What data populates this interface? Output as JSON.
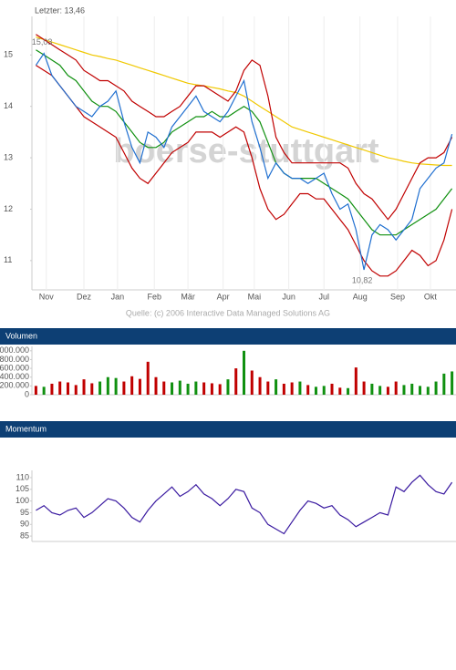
{
  "chart_data": [
    {
      "type": "line",
      "title": "Letzter: 13,46",
      "watermark": "boerse-stuttgart",
      "source": "Quelle: (c) 2006 Interactive Data Managed Solutions AG",
      "x": [
        0,
        1,
        2,
        3,
        4,
        5,
        6,
        7,
        8,
        9,
        10,
        11,
        12,
        13,
        14,
        15,
        16,
        17,
        18,
        19,
        20,
        21,
        22,
        23,
        24,
        25,
        26,
        27,
        28,
        29,
        30,
        31,
        32,
        33,
        34,
        35,
        36,
        37,
        38,
        39,
        40,
        41,
        42,
        43,
        44,
        45,
        46,
        47,
        48,
        49,
        50,
        51,
        52
      ],
      "xlim": [
        -0.5,
        52.5
      ],
      "xticks": [
        {
          "value": 1.3,
          "label": "Nov"
        },
        {
          "value": 6,
          "label": "Dez"
        },
        {
          "value": 10.2,
          "label": "Jan"
        },
        {
          "value": 14.8,
          "label": "Feb"
        },
        {
          "value": 19,
          "label": "Mär"
        },
        {
          "value": 23.4,
          "label": "Apr"
        },
        {
          "value": 27.3,
          "label": "Mai"
        },
        {
          "value": 31.6,
          "label": "Jun"
        },
        {
          "value": 36,
          "label": "Jul"
        },
        {
          "value": 40.5,
          "label": "Aug"
        },
        {
          "value": 45.2,
          "label": "Sep"
        },
        {
          "value": 49.3,
          "label": "Okt"
        }
      ],
      "ylim": [
        10.43,
        15.75
      ],
      "yticks": [
        11,
        12,
        13,
        14,
        15
      ],
      "series": [
        {
          "color": "#f0c800",
          "values": [
            15.35,
            15.3,
            15.25,
            15.2,
            15.15,
            15.1,
            15.05,
            15.0,
            14.97,
            14.93,
            14.9,
            14.85,
            14.8,
            14.75,
            14.7,
            14.65,
            14.6,
            14.55,
            14.5,
            14.45,
            14.42,
            14.4,
            14.37,
            14.34,
            14.3,
            14.27,
            14.2,
            14.1,
            14.0,
            13.9,
            13.8,
            13.7,
            13.6,
            13.55,
            13.5,
            13.45,
            13.4,
            13.35,
            13.3,
            13.25,
            13.2,
            13.15,
            13.1,
            13.05,
            13.0,
            12.97,
            12.93,
            12.9,
            12.88,
            12.87,
            12.86,
            12.85,
            12.85
          ]
        },
        {
          "color": "#c00000",
          "values": [
            15.4,
            15.3,
            15.2,
            15.1,
            15.0,
            14.9,
            14.7,
            14.6,
            14.5,
            14.5,
            14.4,
            14.3,
            14.1,
            14.0,
            13.9,
            13.8,
            13.8,
            13.9,
            14.0,
            14.2,
            14.4,
            14.4,
            14.3,
            14.2,
            14.1,
            14.3,
            14.7,
            14.9,
            14.8,
            14.2,
            13.4,
            13.1,
            12.9,
            12.9,
            12.9,
            12.9,
            12.9,
            12.9,
            12.9,
            12.8,
            12.5,
            12.3,
            12.2,
            12.0,
            11.8,
            12.0,
            12.3,
            12.6,
            12.9,
            13.0,
            13.0,
            13.1,
            13.4
          ]
        },
        {
          "color": "#c00000",
          "values": [
            14.8,
            14.7,
            14.6,
            14.4,
            14.2,
            14.0,
            13.8,
            13.7,
            13.6,
            13.5,
            13.4,
            13.1,
            12.8,
            12.6,
            12.5,
            12.7,
            12.9,
            13.1,
            13.2,
            13.3,
            13.5,
            13.5,
            13.5,
            13.4,
            13.5,
            13.6,
            13.5,
            13.0,
            12.4,
            12.0,
            11.8,
            11.9,
            12.1,
            12.3,
            12.3,
            12.2,
            12.2,
            12.0,
            11.8,
            11.6,
            11.3,
            11.0,
            10.8,
            10.7,
            10.7,
            10.8,
            11.0,
            11.2,
            11.1,
            10.9,
            11.0,
            11.4,
            12.0
          ]
        },
        {
          "color": "#109010",
          "values": [
            15.1,
            15.0,
            14.9,
            14.8,
            14.6,
            14.5,
            14.3,
            14.1,
            14.0,
            14.0,
            13.9,
            13.7,
            13.5,
            13.3,
            13.2,
            13.2,
            13.3,
            13.5,
            13.6,
            13.7,
            13.8,
            13.8,
            13.9,
            13.8,
            13.8,
            13.9,
            14.0,
            13.9,
            13.7,
            13.3,
            12.9,
            12.7,
            12.6,
            12.6,
            12.6,
            12.6,
            12.5,
            12.4,
            12.3,
            12.2,
            12.0,
            11.8,
            11.6,
            11.5,
            11.5,
            11.5,
            11.6,
            11.7,
            11.8,
            11.9,
            12.0,
            12.2,
            12.4
          ]
        },
        {
          "color": "#1f6fd0",
          "values": [
            14.8,
            15.03,
            14.6,
            14.4,
            14.2,
            14.0,
            13.9,
            13.8,
            14.0,
            14.1,
            14.3,
            13.7,
            13.2,
            12.9,
            13.5,
            13.4,
            13.2,
            13.6,
            13.8,
            14.0,
            14.2,
            13.9,
            13.8,
            13.7,
            13.9,
            14.2,
            14.5,
            13.7,
            13.2,
            12.6,
            12.9,
            12.7,
            12.6,
            12.6,
            12.5,
            12.6,
            12.7,
            12.3,
            12.0,
            12.1,
            11.6,
            10.82,
            11.5,
            11.7,
            11.6,
            11.4,
            11.6,
            11.8,
            12.4,
            12.6,
            12.8,
            12.9,
            13.46
          ]
        }
      ],
      "annotations": [
        {
          "text": "15,03",
          "x": 1,
          "y": 15.03
        },
        {
          "text": "10,82",
          "x": 41,
          "y": 10.82
        }
      ]
    },
    {
      "type": "bar",
      "header": "Volumen",
      "x": [
        0,
        1,
        2,
        3,
        4,
        5,
        6,
        7,
        8,
        9,
        10,
        11,
        12,
        13,
        14,
        15,
        16,
        17,
        18,
        19,
        20,
        21,
        22,
        23,
        24,
        25,
        26,
        27,
        28,
        29,
        30,
        31,
        32,
        33,
        34,
        35,
        36,
        37,
        38,
        39,
        40,
        41,
        42,
        43,
        44,
        45,
        46,
        47,
        48,
        49,
        50,
        51,
        52
      ],
      "xlim": [
        -0.5,
        52.5
      ],
      "ylim": [
        0,
        1100000
      ],
      "yticks": [
        {
          "value": 0,
          "label": "0"
        },
        {
          "value": 200000,
          "label": "200.000"
        },
        {
          "value": 400000,
          "label": "400.000"
        },
        {
          "value": 600000,
          "label": "600.000"
        },
        {
          "value": 800000,
          "label": "800.000"
        },
        {
          "value": 1000000,
          "label": "1.000.000"
        }
      ],
      "values": [
        200000,
        180000,
        250000,
        300000,
        280000,
        220000,
        350000,
        260000,
        300000,
        400000,
        380000,
        300000,
        420000,
        360000,
        750000,
        400000,
        300000,
        280000,
        320000,
        250000,
        300000,
        280000,
        260000,
        240000,
        350000,
        600000,
        1000000,
        550000,
        400000,
        300000,
        350000,
        250000,
        280000,
        300000,
        220000,
        180000,
        200000,
        250000,
        160000,
        150000,
        620000,
        300000,
        250000,
        200000,
        180000,
        300000,
        220000,
        250000,
        200000,
        180000,
        300000,
        480000,
        530000
      ],
      "colors": [
        "#c00000",
        "#109010",
        "#c00000",
        "#c00000",
        "#c00000",
        "#c00000",
        "#c00000",
        "#c00000",
        "#109010",
        "#109010",
        "#109010",
        "#c00000",
        "#c00000",
        "#c00000",
        "#c00000",
        "#c00000",
        "#c00000",
        "#109010",
        "#109010",
        "#109010",
        "#109010",
        "#c00000",
        "#c00000",
        "#c00000",
        "#109010",
        "#c00000",
        "#109010",
        "#c00000",
        "#c00000",
        "#c00000",
        "#109010",
        "#c00000",
        "#c00000",
        "#109010",
        "#c00000",
        "#109010",
        "#109010",
        "#c00000",
        "#c00000",
        "#109010",
        "#c00000",
        "#c00000",
        "#109010",
        "#109010",
        "#c00000",
        "#c00000",
        "#109010",
        "#109010",
        "#109010",
        "#109010",
        "#109010",
        "#109010",
        "#109010"
      ]
    },
    {
      "type": "line",
      "header": "Momentum",
      "x": [
        0,
        1,
        2,
        3,
        4,
        5,
        6,
        7,
        8,
        9,
        10,
        11,
        12,
        13,
        14,
        15,
        16,
        17,
        18,
        19,
        20,
        21,
        22,
        23,
        24,
        25,
        26,
        27,
        28,
        29,
        30,
        31,
        32,
        33,
        34,
        35,
        36,
        37,
        38,
        39,
        40,
        41,
        42,
        43,
        44,
        45,
        46,
        47,
        48,
        49,
        50,
        51,
        52
      ],
      "xlim": [
        -0.5,
        52.5
      ],
      "ylim": [
        82.7,
        113.1
      ],
      "yticks": [
        85,
        90,
        95,
        100,
        105,
        110
      ],
      "series": [
        {
          "color": "#3a1aa0",
          "values": [
            96,
            98,
            95,
            94,
            96,
            97,
            93,
            95,
            98,
            101,
            100,
            97,
            93,
            91,
            96,
            100,
            103,
            106,
            102,
            104,
            107,
            103,
            101,
            98,
            101,
            105,
            104,
            97,
            95,
            90,
            88,
            86,
            91,
            96,
            100,
            99,
            97,
            98,
            94,
            92,
            89,
            91,
            93,
            95,
            94,
            106,
            104,
            108,
            111,
            107,
            104,
            103,
            108
          ]
        }
      ]
    }
  ]
}
